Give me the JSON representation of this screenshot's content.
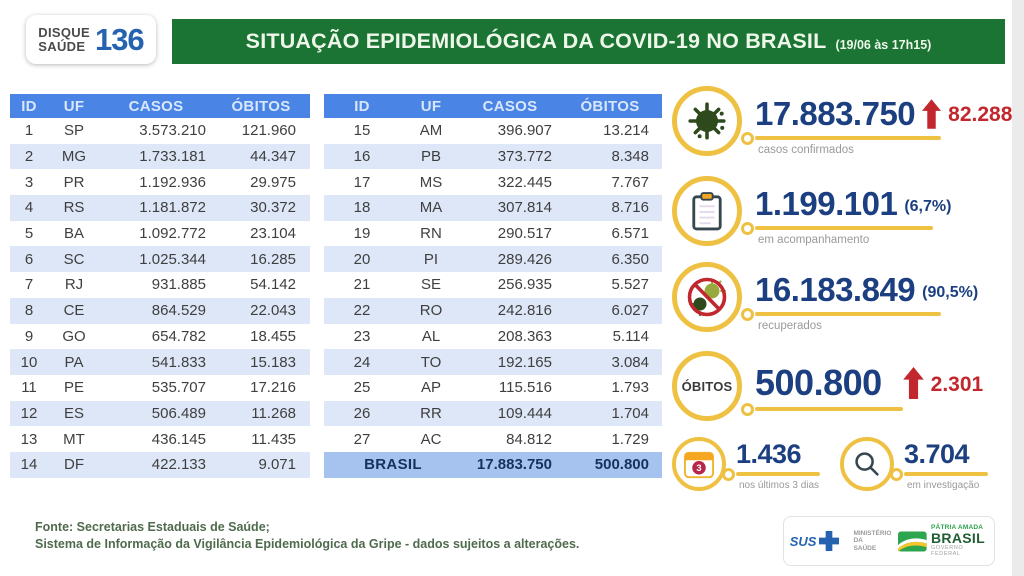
{
  "header": {
    "logo": {
      "top": "DISQUE",
      "bottom": "SAÚDE",
      "number": "136"
    },
    "title": "SITUAÇÃO EPIDEMIOLÓGICA DA COVID-19 NO BRASIL",
    "timestamp": "(19/06 às 17h15)"
  },
  "tables": {
    "columns": [
      "ID",
      "UF",
      "CASOS",
      "ÓBITOS"
    ],
    "left_rows": [
      {
        "id": "1",
        "uf": "SP",
        "casos": "3.573.210",
        "obitos": "121.960"
      },
      {
        "id": "2",
        "uf": "MG",
        "casos": "1.733.181",
        "obitos": "44.347"
      },
      {
        "id": "3",
        "uf": "PR",
        "casos": "1.192.936",
        "obitos": "29.975"
      },
      {
        "id": "4",
        "uf": "RS",
        "casos": "1.181.872",
        "obitos": "30.372"
      },
      {
        "id": "5",
        "uf": "BA",
        "casos": "1.092.772",
        "obitos": "23.104"
      },
      {
        "id": "6",
        "uf": "SC",
        "casos": "1.025.344",
        "obitos": "16.285"
      },
      {
        "id": "7",
        "uf": "RJ",
        "casos": "931.885",
        "obitos": "54.142"
      },
      {
        "id": "8",
        "uf": "CE",
        "casos": "864.529",
        "obitos": "22.043"
      },
      {
        "id": "9",
        "uf": "GO",
        "casos": "654.782",
        "obitos": "18.455"
      },
      {
        "id": "10",
        "uf": "PA",
        "casos": "541.833",
        "obitos": "15.183"
      },
      {
        "id": "11",
        "uf": "PE",
        "casos": "535.707",
        "obitos": "17.216"
      },
      {
        "id": "12",
        "uf": "ES",
        "casos": "506.489",
        "obitos": "11.268"
      },
      {
        "id": "13",
        "uf": "MT",
        "casos": "436.145",
        "obitos": "11.435"
      },
      {
        "id": "14",
        "uf": "DF",
        "casos": "422.133",
        "obitos": "9.071"
      }
    ],
    "right_rows": [
      {
        "id": "15",
        "uf": "AM",
        "casos": "396.907",
        "obitos": "13.214"
      },
      {
        "id": "16",
        "uf": "PB",
        "casos": "373.772",
        "obitos": "8.348"
      },
      {
        "id": "17",
        "uf": "MS",
        "casos": "322.445",
        "obitos": "7.767"
      },
      {
        "id": "18",
        "uf": "MA",
        "casos": "307.814",
        "obitos": "8.716"
      },
      {
        "id": "19",
        "uf": "RN",
        "casos": "290.517",
        "obitos": "6.571"
      },
      {
        "id": "20",
        "uf": "PI",
        "casos": "289.426",
        "obitos": "6.350"
      },
      {
        "id": "21",
        "uf": "SE",
        "casos": "256.935",
        "obitos": "5.527"
      },
      {
        "id": "22",
        "uf": "RO",
        "casos": "242.816",
        "obitos": "6.027"
      },
      {
        "id": "23",
        "uf": "AL",
        "casos": "208.363",
        "obitos": "5.114"
      },
      {
        "id": "24",
        "uf": "TO",
        "casos": "192.165",
        "obitos": "3.084"
      },
      {
        "id": "25",
        "uf": "AP",
        "casos": "115.516",
        "obitos": "1.793"
      },
      {
        "id": "26",
        "uf": "RR",
        "casos": "109.444",
        "obitos": "1.704"
      },
      {
        "id": "27",
        "uf": "AC",
        "casos": "84.812",
        "obitos": "1.729"
      }
    ],
    "total": {
      "label": "BRASIL",
      "casos": "17.883.750",
      "obitos": "500.800"
    }
  },
  "stats": {
    "confirmed": {
      "value": "17.883.750",
      "delta": "82.288",
      "label": "casos confirmados"
    },
    "monitoring": {
      "value": "1.199.101",
      "percent": "(6,7%)",
      "label": "em acompanhamento"
    },
    "recovered": {
      "value": "16.183.849",
      "percent": "(90,5%)",
      "label": "recuperados"
    },
    "deaths": {
      "badge": "ÓBITOS",
      "value": "500.800",
      "delta": "2.301"
    },
    "last3days": {
      "value": "1.436",
      "badge": "3",
      "label": "nos últimos 3 dias"
    },
    "investigation": {
      "value": "3.704",
      "label": "em investigação"
    }
  },
  "footer": {
    "line1": "Fonte: Secretarias Estaduais de Saúde;",
    "line2": "Sistema de Informação da Vigilância Epidemiológica da Gripe - dados sujeitos a alterações.",
    "logos": {
      "sus": "SUS",
      "ministry1": "MINISTÉRIO DA",
      "ministry2": "SAÚDE",
      "patria1": "PÁTRIA AMADA",
      "patria2": "BRASIL",
      "governo": "GOVERNO FEDERAL"
    }
  },
  "colors": {
    "banner_green": "#1b7433",
    "header_blue": "#4a84e4",
    "row_alt_blue": "#dde7f8",
    "total_row_blue": "#a6c3ef",
    "number_blue": "#1b3f80",
    "delta_red": "#c1272d",
    "accent_yellow": "#efc143"
  }
}
